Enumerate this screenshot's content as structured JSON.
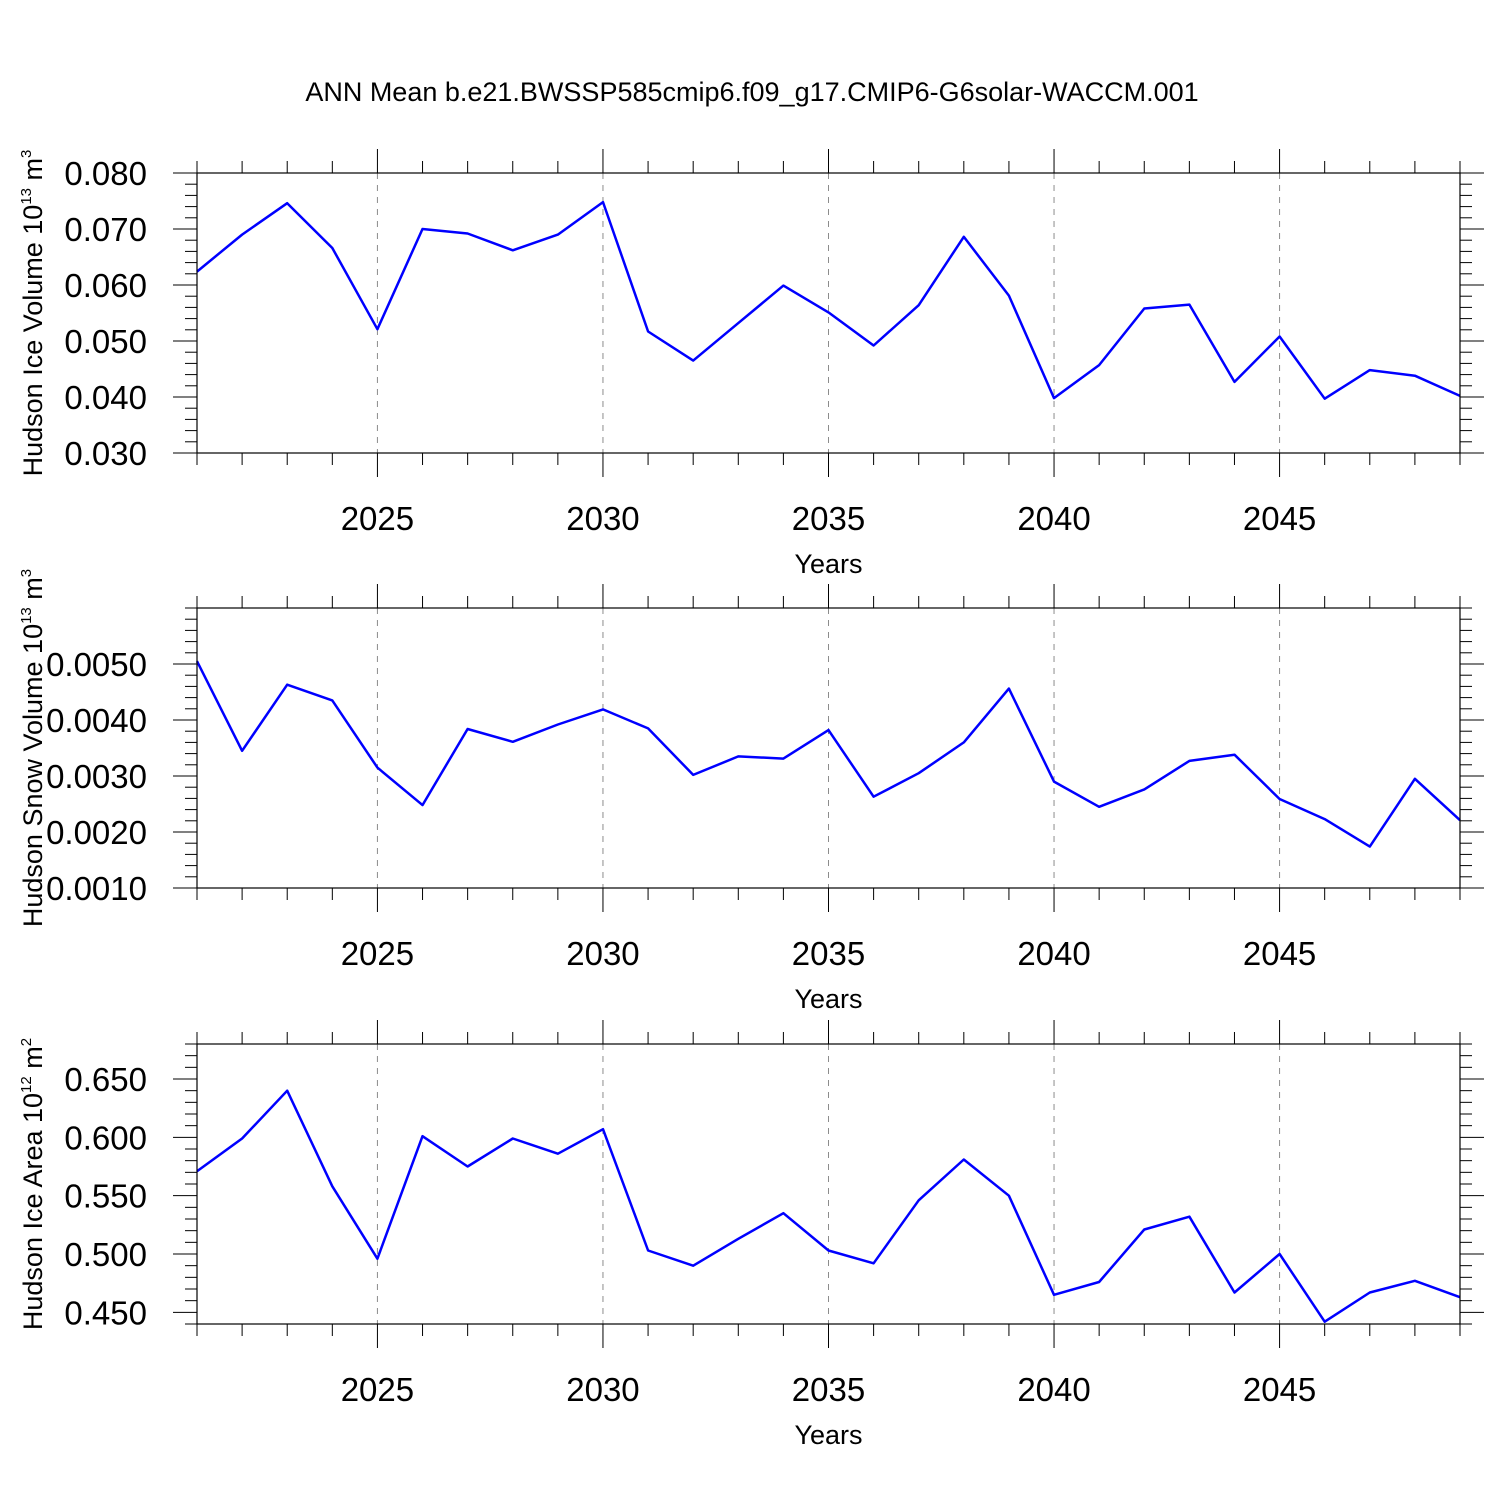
{
  "title": "ANN Mean b.e21.BWSSP585cmip6.f09_g17.CMIP6-G6solar-WACCM.001",
  "colors": {
    "line": "#0000ff",
    "axis": "#000000",
    "grid": "#8c8c8c"
  },
  "chart_data": [
    {
      "type": "line",
      "xlabel": "Years",
      "ylabel": {
        "text": "Hudson Ice Volume 10",
        "sup": "13",
        "unit": " m",
        "unit_sup": "3"
      },
      "xlim": [
        2021,
        2049
      ],
      "ylim": [
        0.03,
        0.08
      ],
      "x_ticks": [
        2025,
        2030,
        2035,
        2040,
        2045
      ],
      "x_tick_labels": [
        "2025",
        "2030",
        "2035",
        "2040",
        "2045"
      ],
      "y_ticks": [
        0.03,
        0.04,
        0.05,
        0.06,
        0.07,
        0.08
      ],
      "y_tick_labels": [
        "0.030",
        "0.040",
        "0.050",
        "0.060",
        "0.070",
        "0.080"
      ],
      "y_minor_step": 0.002,
      "grid": "dashed vertical at major x ticks",
      "series": [
        {
          "x": [
            2021,
            2022,
            2023,
            2024,
            2025,
            2026,
            2027,
            2028,
            2029,
            2030,
            2031,
            2032,
            2033,
            2034,
            2035,
            2036,
            2037,
            2038,
            2039,
            2040,
            2041,
            2042,
            2043,
            2044,
            2045,
            2046,
            2047,
            2048,
            2049
          ],
          "values": [
            0.0624,
            0.069,
            0.0746,
            0.0666,
            0.0521,
            0.07,
            0.0692,
            0.0662,
            0.069,
            0.0748,
            0.0517,
            0.0465,
            0.0532,
            0.0599,
            0.0551,
            0.0492,
            0.0564,
            0.0686,
            0.0581,
            0.0398,
            0.0457,
            0.0558,
            0.0565,
            0.0427,
            0.0508,
            0.0397,
            0.0448,
            0.0438,
            0.0402
          ]
        }
      ]
    },
    {
      "type": "line",
      "xlabel": "Years",
      "ylabel": {
        "text": "Hudson Snow Volume 10",
        "sup": "13",
        "unit": " m",
        "unit_sup": "3"
      },
      "xlim": [
        2021,
        2049
      ],
      "ylim": [
        0.001,
        0.006
      ],
      "x_ticks": [
        2025,
        2030,
        2035,
        2040,
        2045
      ],
      "x_tick_labels": [
        "2025",
        "2030",
        "2035",
        "2040",
        "2045"
      ],
      "y_ticks": [
        0.001,
        0.002,
        0.003,
        0.004,
        0.005
      ],
      "y_tick_labels": [
        "0.0010",
        "0.0020",
        "0.0030",
        "0.0040",
        "0.0050"
      ],
      "y_minor_step": 0.0002,
      "grid": "dashed vertical at major x ticks",
      "series": [
        {
          "x": [
            2021,
            2022,
            2023,
            2024,
            2025,
            2026,
            2027,
            2028,
            2029,
            2030,
            2031,
            2032,
            2033,
            2034,
            2035,
            2036,
            2037,
            2038,
            2039,
            2040,
            2041,
            2042,
            2043,
            2044,
            2045,
            2046,
            2047,
            2048,
            2049
          ],
          "values": [
            0.00505,
            0.00345,
            0.00463,
            0.00435,
            0.00315,
            0.00248,
            0.00384,
            0.00361,
            0.00392,
            0.00419,
            0.00385,
            0.00302,
            0.00335,
            0.00331,
            0.00382,
            0.00263,
            0.00305,
            0.0036,
            0.00456,
            0.0029,
            0.00245,
            0.00276,
            0.00327,
            0.00338,
            0.00259,
            0.00223,
            0.00174,
            0.00295,
            0.00221
          ]
        }
      ]
    },
    {
      "type": "line",
      "xlabel": "Years",
      "ylabel": {
        "text": "Hudson Ice Area 10",
        "sup": "12",
        "unit": " m",
        "unit_sup": "2"
      },
      "xlim": [
        2021,
        2049
      ],
      "ylim": [
        0.44,
        0.68
      ],
      "x_ticks": [
        2025,
        2030,
        2035,
        2040,
        2045
      ],
      "x_tick_labels": [
        "2025",
        "2030",
        "2035",
        "2040",
        "2045"
      ],
      "y_ticks": [
        0.45,
        0.5,
        0.55,
        0.6,
        0.65
      ],
      "y_tick_labels": [
        "0.450",
        "0.500",
        "0.550",
        "0.600",
        "0.650"
      ],
      "y_minor_step": 0.01,
      "grid": "dashed vertical at major x ticks",
      "series": [
        {
          "x": [
            2021,
            2022,
            2023,
            2024,
            2025,
            2026,
            2027,
            2028,
            2029,
            2030,
            2031,
            2032,
            2033,
            2034,
            2035,
            2036,
            2037,
            2038,
            2039,
            2040,
            2041,
            2042,
            2043,
            2044,
            2045,
            2046,
            2047,
            2048,
            2049
          ],
          "values": [
            0.571,
            0.599,
            0.64,
            0.558,
            0.496,
            0.601,
            0.575,
            0.599,
            0.586,
            0.607,
            0.503,
            0.49,
            0.513,
            0.535,
            0.503,
            0.492,
            0.546,
            0.581,
            0.55,
            0.465,
            0.476,
            0.521,
            0.532,
            0.467,
            0.5,
            0.442,
            0.467,
            0.477,
            0.463
          ]
        }
      ]
    }
  ]
}
